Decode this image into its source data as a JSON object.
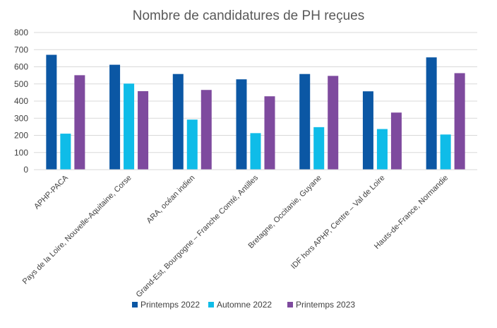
{
  "chart_data": {
    "type": "bar",
    "title": "Nombre de candidatures de PH reçues",
    "xlabel": "",
    "ylabel": "",
    "ylim": [
      0,
      800
    ],
    "yticks": [
      0,
      100,
      200,
      300,
      400,
      500,
      600,
      700,
      800
    ],
    "grid": true,
    "legend_position": "bottom",
    "categories": [
      "APHP-PACA",
      "Pays de la Loire, Nouvelle-Aquitaine, Corse",
      "ARA, océan indien",
      "Grand-Est, Bourgogne – Franche Comté, Antilles",
      "Bretagne, Occitanie, Guyane",
      "IDF hors APHP, Centre – Val de Loire",
      "Hauts-de-France, Normandie"
    ],
    "series": [
      {
        "name": "Printemps 2022",
        "color": "#0B57A4",
        "values": [
          670,
          612,
          558,
          527,
          558,
          457,
          655
        ]
      },
      {
        "name": "Automne 2022",
        "color": "#0FBCE8",
        "values": [
          210,
          502,
          292,
          213,
          248,
          237,
          205
        ]
      },
      {
        "name": "Printemps 2023",
        "color": "#7E4A9E",
        "values": [
          551,
          458,
          465,
          428,
          547,
          333,
          563
        ]
      }
    ]
  }
}
